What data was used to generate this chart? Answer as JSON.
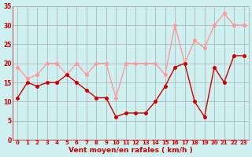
{
  "hours": [
    0,
    1,
    2,
    3,
    4,
    5,
    6,
    7,
    8,
    9,
    10,
    11,
    12,
    13,
    14,
    15,
    16,
    17,
    18,
    19,
    20,
    21,
    22,
    23
  ],
  "vent_moyen": [
    11,
    15,
    14,
    15,
    15,
    17,
    15,
    13,
    11,
    11,
    6,
    7,
    7,
    7,
    10,
    14,
    19,
    20,
    10,
    6,
    19,
    15,
    22,
    22
  ],
  "rafales": [
    19,
    16,
    17,
    20,
    20,
    17,
    20,
    17,
    20,
    20,
    11,
    20,
    20,
    20,
    20,
    17,
    30,
    20,
    26,
    24,
    30,
    33,
    30,
    30
  ],
  "xlabel": "Vent moyen/en rafales ( km/h )",
  "bg_color": "#cff0f0",
  "grid_color": "#aaaaaa",
  "line_color_moyen": "#cc0000",
  "line_color_rafales": "#ff9999",
  "ylim": [
    0,
    35
  ],
  "yticks": [
    0,
    5,
    10,
    15,
    20,
    25,
    30,
    35
  ],
  "xticks": [
    0,
    1,
    2,
    3,
    4,
    5,
    6,
    7,
    8,
    9,
    10,
    11,
    12,
    13,
    14,
    15,
    16,
    17,
    18,
    19,
    20,
    21,
    22,
    23
  ]
}
